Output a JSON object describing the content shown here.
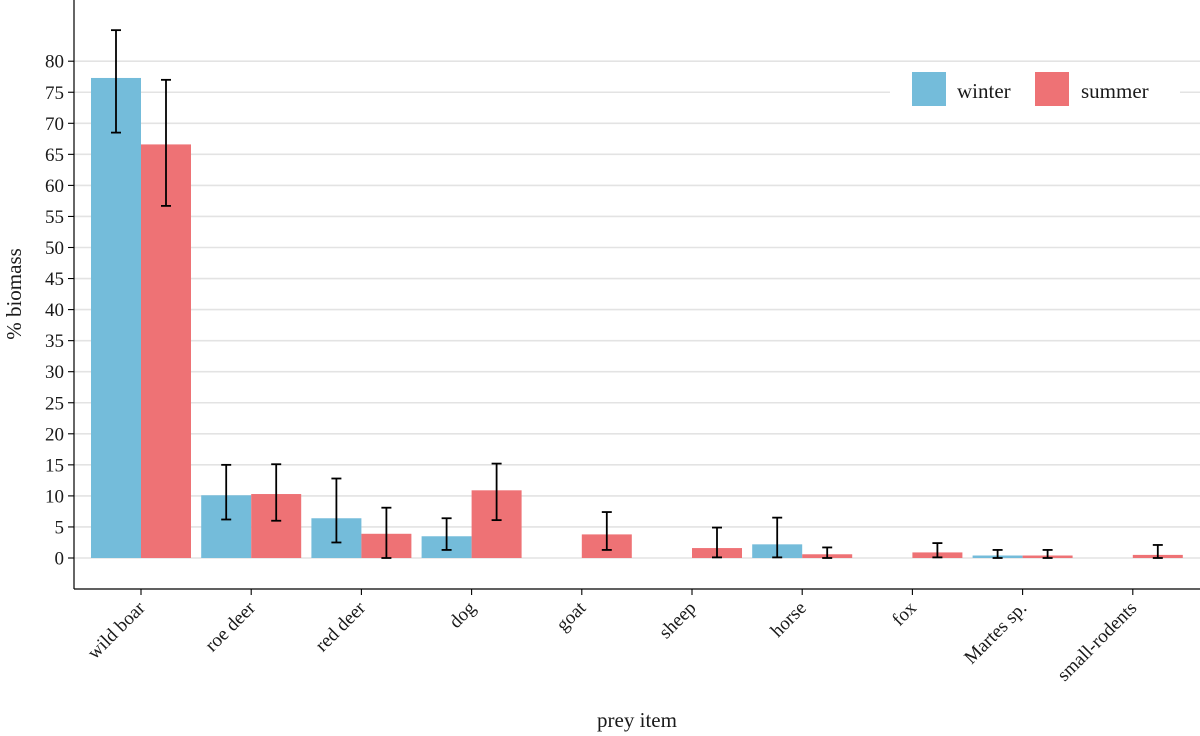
{
  "chart_data": {
    "type": "bar",
    "title": "",
    "xlabel": "prey item",
    "ylabel": "% biomass",
    "ylim": [
      -5,
      88
    ],
    "yticks": [
      0,
      5,
      10,
      15,
      20,
      25,
      30,
      35,
      40,
      45,
      50,
      55,
      60,
      65,
      70,
      75,
      80
    ],
    "grid": "horizontal",
    "legend_position": "top-right",
    "categories": [
      "wild boar",
      "roe deer",
      "red deer",
      "dog",
      "goat",
      "sheep",
      "horse",
      "fox",
      "Martes sp.",
      "small-rodents"
    ],
    "series": [
      {
        "name": "winter",
        "color": "#74BCDA",
        "values": [
          77.3,
          10.1,
          6.4,
          3.5,
          null,
          null,
          2.2,
          null,
          0.4,
          null
        ],
        "error_low": [
          68.5,
          6.2,
          2.5,
          1.3,
          null,
          null,
          0.1,
          null,
          0.0,
          null
        ],
        "error_high": [
          85.0,
          15.0,
          12.8,
          6.4,
          null,
          null,
          6.5,
          null,
          1.3,
          null
        ]
      },
      {
        "name": "summer",
        "color": "#EE7275",
        "values": [
          66.6,
          10.3,
          3.9,
          10.9,
          3.8,
          1.6,
          0.6,
          0.9,
          0.4,
          0.5
        ],
        "error_low": [
          56.7,
          6.0,
          0.0,
          6.1,
          1.3,
          0.1,
          0.0,
          0.1,
          0.0,
          0.0
        ],
        "error_high": [
          77.0,
          15.1,
          8.1,
          15.2,
          7.4,
          4.9,
          1.7,
          2.4,
          1.3,
          2.1
        ]
      }
    ]
  }
}
